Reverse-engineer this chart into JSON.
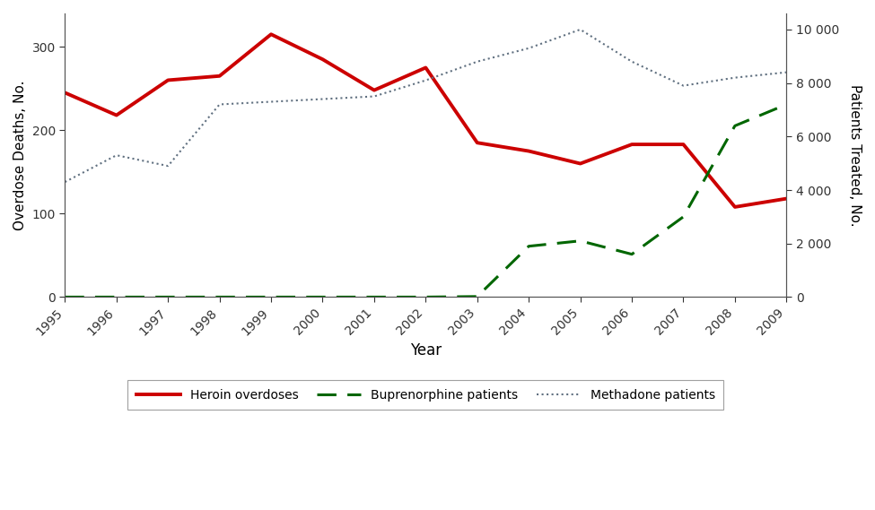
{
  "years": [
    1995,
    1996,
    1997,
    1998,
    1999,
    2000,
    2001,
    2002,
    2003,
    2004,
    2005,
    2006,
    2007,
    2008,
    2009
  ],
  "heroin_overdoses": [
    245,
    218,
    260,
    265,
    315,
    285,
    248,
    275,
    185,
    175,
    160,
    183,
    183,
    108,
    118
  ],
  "buprenorphine_patients": [
    0,
    0,
    0,
    0,
    0,
    0,
    0,
    0,
    20,
    1900,
    2100,
    1600,
    3000,
    6400,
    7200
  ],
  "methadone_patients": [
    4300,
    5300,
    4900,
    7200,
    7300,
    7400,
    7500,
    8100,
    8800,
    9300,
    10000,
    8800,
    7900,
    8200,
    8400
  ],
  "left_ylabel": "Overdose Deaths, No.",
  "right_ylabel": "Patients Treated, No.",
  "xlabel": "Year",
  "left_ylim": [
    0,
    340
  ],
  "right_ylim": [
    0,
    10600
  ],
  "left_yticks": [
    0,
    100,
    200,
    300
  ],
  "right_yticks": [
    0,
    2000,
    4000,
    6000,
    8000,
    10000
  ],
  "right_yticklabels": [
    "0",
    "2 000",
    "4 000",
    "6 000",
    "8 000",
    "10 000"
  ],
  "heroin_color": "#cc0000",
  "buprenorphine_color": "#006600",
  "methadone_color": "#607080",
  "background_color": "#ffffff",
  "legend_labels": [
    "Heroin overdoses",
    "Buprenorphine patients",
    "Methadone patients"
  ]
}
